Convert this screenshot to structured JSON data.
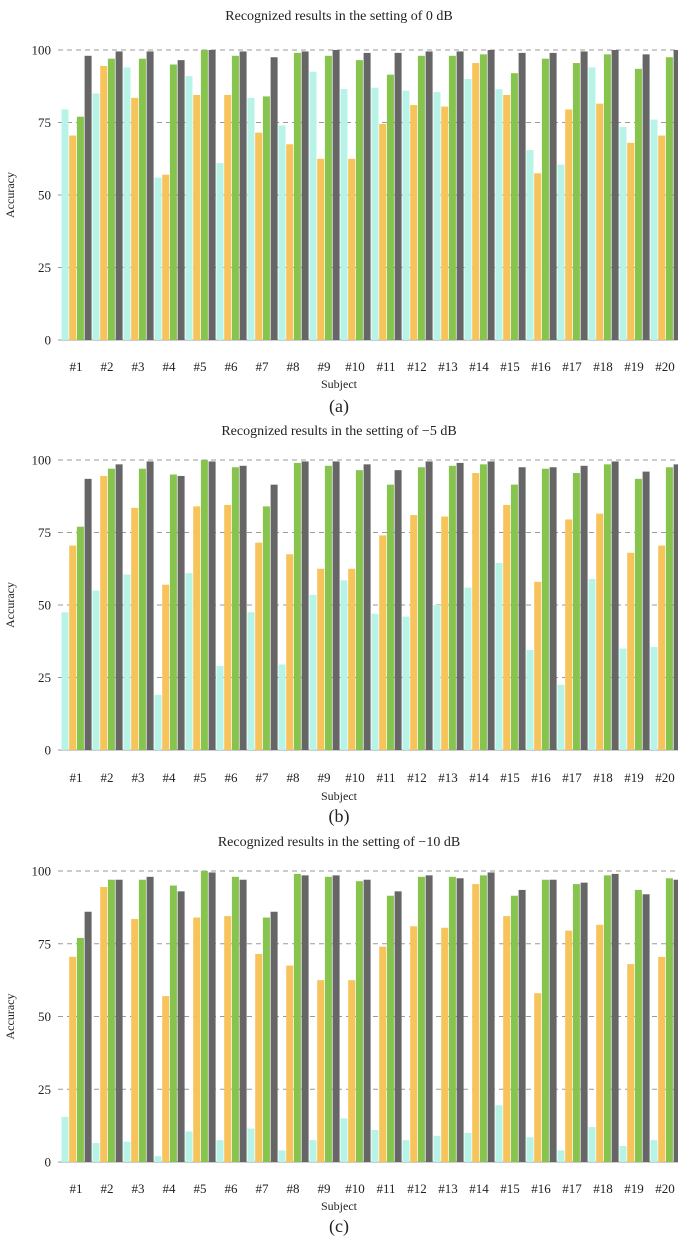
{
  "chart_data": [
    {
      "type": "bar",
      "title": "Recognized results in the setting of 0 dB",
      "xlabel": "Subject",
      "ylabel": "Accuracy",
      "caption": "(a)",
      "ylim": [
        0,
        100
      ],
      "yticks": [
        "0",
        "25",
        "50",
        "75",
        "100"
      ],
      "grid": "horizontal dashed",
      "categories": [
        "#1",
        "#2",
        "#3",
        "#4",
        "#5",
        "#6",
        "#7",
        "#8",
        "#9",
        "#10",
        "#11",
        "#12",
        "#13",
        "#14",
        "#15",
        "#16",
        "#17",
        "#18",
        "#19",
        "#20"
      ],
      "series": [
        {
          "color": "#b8f3e8",
          "values": [
            79.5,
            85,
            94,
            56,
            91,
            61,
            83.5,
            74,
            92.5,
            86.5,
            87,
            86,
            85.5,
            90,
            86.5,
            65.5,
            60.5,
            94,
            73.5,
            76
          ]
        },
        {
          "color": "#f7c35b",
          "values": [
            70.5,
            94.5,
            83.5,
            57,
            84.5,
            84.5,
            71.5,
            67.5,
            62.5,
            62.5,
            74.5,
            81,
            80.5,
            95.5,
            84.5,
            57.5,
            79.5,
            81.5,
            68,
            70.5
          ]
        },
        {
          "color": "#86c44e",
          "values": [
            77,
            97,
            97,
            95,
            100,
            98,
            84,
            99,
            98,
            96.5,
            91.5,
            98,
            98,
            98.5,
            92,
            97,
            95.5,
            98.5,
            93.5,
            97.5
          ]
        },
        {
          "color": "#666666",
          "values": [
            98,
            99.5,
            99.5,
            96.5,
            100,
            99.5,
            97.5,
            99.5,
            100,
            99,
            99,
            99.5,
            99.5,
            100,
            99,
            99,
            99.5,
            100,
            98.5,
            100
          ]
        }
      ]
    },
    {
      "type": "bar",
      "title": "Recognized results in the setting of −5 dB",
      "xlabel": "Subject",
      "ylabel": "Accuracy",
      "caption": "(b)",
      "ylim": [
        0,
        100
      ],
      "yticks": [
        "0",
        "25",
        "50",
        "75",
        "100"
      ],
      "grid": "horizontal dashed",
      "categories": [
        "#1",
        "#2",
        "#3",
        "#4",
        "#5",
        "#6",
        "#7",
        "#8",
        "#9",
        "#10",
        "#11",
        "#12",
        "#13",
        "#14",
        "#15",
        "#16",
        "#17",
        "#18",
        "#19",
        "#20"
      ],
      "series": [
        {
          "color": "#b8f3e8",
          "values": [
            47.5,
            55,
            60.5,
            19,
            61,
            29,
            47.5,
            29.5,
            53.5,
            58.5,
            47,
            46,
            50,
            56,
            64.5,
            34.5,
            22.5,
            59,
            35,
            35.5
          ]
        },
        {
          "color": "#f7c35b",
          "values": [
            70.5,
            94.5,
            83.5,
            57,
            84,
            84.5,
            71.5,
            67.5,
            62.5,
            62.5,
            74,
            81,
            80.5,
            95.5,
            84.5,
            58,
            79.5,
            81.5,
            68,
            70.5
          ]
        },
        {
          "color": "#86c44e",
          "values": [
            77,
            97,
            97,
            95,
            100,
            97.5,
            84,
            99,
            98,
            96.5,
            91.5,
            97.5,
            98,
            98.5,
            91.5,
            97,
            95.5,
            98.5,
            93.5,
            97.5
          ]
        },
        {
          "color": "#666666",
          "values": [
            93.5,
            98.5,
            99.5,
            94.5,
            99.5,
            98,
            91.5,
            99.5,
            99.5,
            98.5,
            96.5,
            99.5,
            99,
            99.5,
            97.5,
            97.5,
            98,
            99.5,
            96,
            98.5
          ]
        }
      ]
    },
    {
      "type": "bar",
      "title": "Recognized results in the setting of −10 dB",
      "xlabel": "Subject",
      "ylabel": "Accuracy",
      "caption": "(c)",
      "ylim": [
        0,
        100
      ],
      "yticks": [
        "0",
        "25",
        "50",
        "75",
        "100"
      ],
      "grid": "horizontal dashed",
      "categories": [
        "#1",
        "#2",
        "#3",
        "#4",
        "#5",
        "#6",
        "#7",
        "#8",
        "#9",
        "#10",
        "#11",
        "#12",
        "#13",
        "#14",
        "#15",
        "#16",
        "#17",
        "#18",
        "#19",
        "#20"
      ],
      "series": [
        {
          "color": "#b8f3e8",
          "values": [
            15.5,
            6.5,
            7,
            2,
            10.5,
            7.5,
            11.5,
            4,
            7.5,
            15,
            11,
            7.5,
            9,
            10,
            19.5,
            8.5,
            4,
            12,
            5.5,
            7.5
          ]
        },
        {
          "color": "#f7c35b",
          "values": [
            70.5,
            94.5,
            83.5,
            57,
            84,
            84.5,
            71.5,
            67.5,
            62.5,
            62.5,
            74,
            81,
            80.5,
            95.5,
            84.5,
            58,
            79.5,
            81.5,
            68,
            70.5
          ]
        },
        {
          "color": "#86c44e",
          "values": [
            77,
            97,
            97,
            95,
            100,
            98,
            84,
            99,
            98,
            96.5,
            91.5,
            98,
            98,
            98.5,
            91.5,
            97,
            95.5,
            98.5,
            93.5,
            97.5
          ]
        },
        {
          "color": "#666666",
          "values": [
            86,
            97,
            98,
            93,
            99.5,
            97,
            86,
            98.5,
            98.5,
            97,
            93,
            98.5,
            97.5,
            99.5,
            93.5,
            97,
            96,
            99,
            92,
            97
          ]
        }
      ]
    }
  ]
}
